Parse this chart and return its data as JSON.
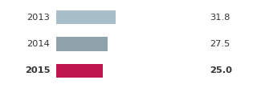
{
  "categories": [
    "2013",
    "2014",
    "2015"
  ],
  "values": [
    31.8,
    27.5,
    25.0
  ],
  "bar_colors": [
    "#a8bfc9",
    "#8fa3ad",
    "#bf1650"
  ],
  "value_labels": [
    "31.8",
    "27.5",
    "25.0"
  ],
  "xlim": [
    0,
    80
  ],
  "bar_height": 0.52,
  "figsize": [
    3.2,
    1.1
  ],
  "dpi": 100,
  "label_color": "#333333",
  "font_size": 8.2
}
